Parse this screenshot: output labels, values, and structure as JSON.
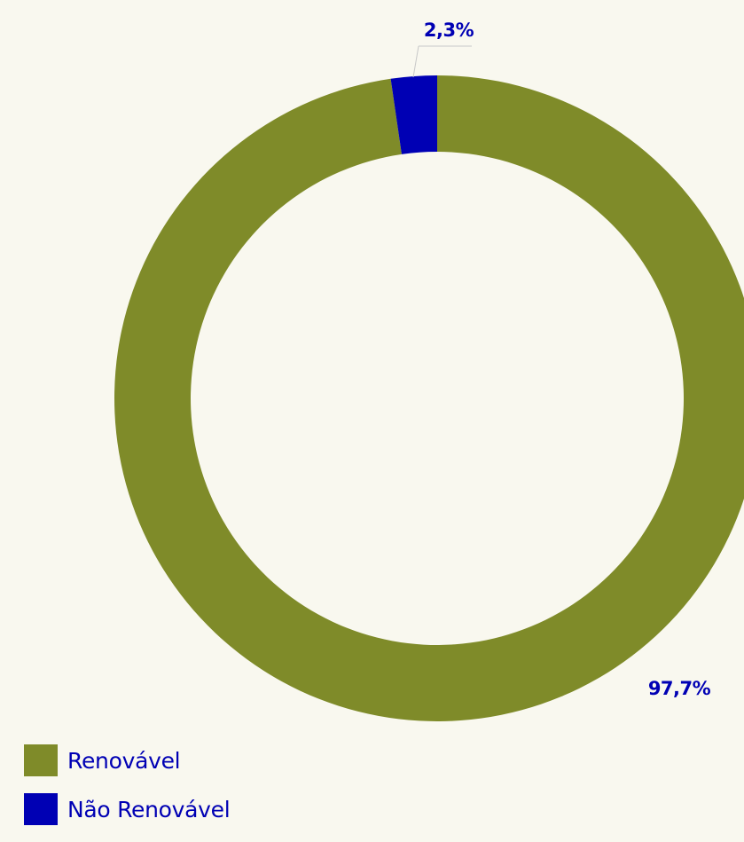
{
  "colors": {
    "background": "#f9f8ef",
    "renewable": "#7f8b29",
    "non_renewable": "#0000b4",
    "text": "#0000b4",
    "leader_line": "#c8c8c8"
  },
  "chart_data": {
    "type": "pie",
    "variant": "donut",
    "categories": [
      "Renovável",
      "Não Renovável"
    ],
    "values": [
      97.7,
      2.3
    ],
    "data_labels": [
      "97,7%",
      "2,3%"
    ],
    "start": "top",
    "direction": "clockwise",
    "legend": "bottom-left",
    "legend_entries": [
      {
        "label": "Renovável",
        "color": "#7f8b29"
      },
      {
        "label": "Não Renovável",
        "color": "#0000b4"
      }
    ]
  }
}
